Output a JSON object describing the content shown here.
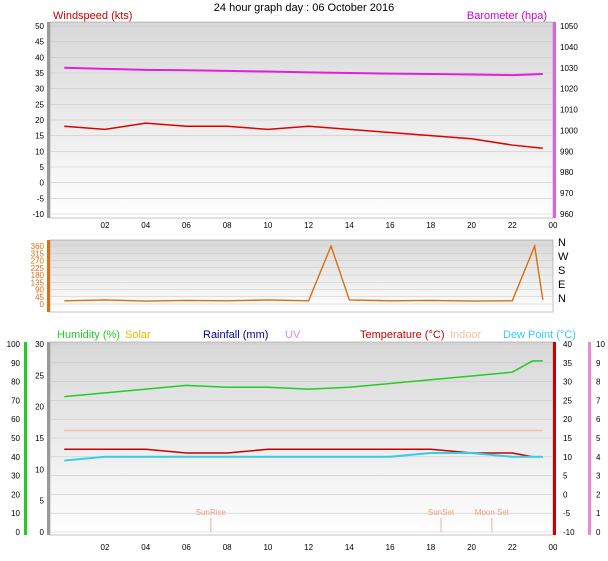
{
  "title": "24 hour graph day : 06 October 2016",
  "colors": {
    "wind": "#e00000",
    "gust_bg": "#b0b0b0",
    "avg": "#0000cc",
    "baro": "#e020e0",
    "dir": "#d87010",
    "humidity": "#22cc22",
    "solar": "#d8c000",
    "rain": "#000099",
    "uv": "#e88ad0",
    "temp": "#cc0000",
    "indoor": "#f5c0a0",
    "dew": "#33ccee"
  },
  "x_ticks": [
    "02",
    "04",
    "06",
    "08",
    "10",
    "12",
    "14",
    "16",
    "18",
    "20",
    "22",
    "00"
  ],
  "chart_data": [
    {
      "type": "line",
      "title": "",
      "left_axis": {
        "label": "Windspeed (kts)",
        "ticks": [
          "-10",
          "-5",
          "0",
          "5",
          "10",
          "15",
          "20",
          "25",
          "30",
          "35",
          "40",
          "45",
          "50"
        ],
        "ylim": [
          -10,
          50
        ]
      },
      "right_axis": {
        "label": "Barometer (hpa)",
        "ticks": [
          "960",
          "970",
          "980",
          "990",
          "1000",
          "1010",
          "1020",
          "1030",
          "1040",
          "1050"
        ],
        "ylim": [
          960,
          1050
        ]
      },
      "x": [
        0,
        2,
        4,
        6,
        8,
        10,
        12,
        14,
        16,
        18,
        20,
        22,
        23.5
      ],
      "series": [
        {
          "name": "Windspeed",
          "axis": "left",
          "values": [
            18,
            17,
            19,
            18,
            18,
            17,
            18,
            17,
            16,
            15,
            14,
            12,
            11
          ]
        },
        {
          "name": "Barometer",
          "axis": "right",
          "values": [
            1030,
            1029.5,
            1029,
            1028.8,
            1028.5,
            1028.2,
            1027.8,
            1027.5,
            1027.2,
            1027,
            1026.8,
            1026.5,
            1027
          ]
        }
      ]
    },
    {
      "type": "scatter",
      "title": "",
      "left_axis": {
        "ticks": [
          "0",
          "45",
          "90",
          "135",
          "180",
          "225",
          "270",
          "315",
          "360"
        ],
        "ylim": [
          0,
          360
        ]
      },
      "right_axis": {
        "ticks": [
          "N",
          "E",
          "S",
          "W",
          "N"
        ]
      },
      "x": [
        0,
        2,
        4,
        6,
        8,
        10,
        12,
        13.1,
        14,
        16,
        18,
        20,
        22,
        23.1,
        23.5
      ],
      "series": [
        {
          "name": "Direction",
          "values": [
            20,
            25,
            18,
            22,
            20,
            25,
            20,
            360,
            25,
            20,
            22,
            18,
            20,
            360,
            25
          ]
        }
      ]
    },
    {
      "type": "line",
      "title": "",
      "legend": [
        "Humidity (%)",
        "Solar",
        "Rainfall (mm)",
        "UV",
        "Temperature (°C)",
        "Indoor",
        "Dew Point (°C)"
      ],
      "left_axis": {
        "ticks": [
          "0",
          "10",
          "20",
          "30",
          "40",
          "50",
          "60",
          "70",
          "80",
          "90",
          "100"
        ],
        "ylim": [
          0,
          100
        ]
      },
      "mid_axis": {
        "ticks": [
          "0",
          "5",
          "10",
          "15",
          "20",
          "25",
          "30"
        ],
        "ylim": [
          0,
          30
        ]
      },
      "right_axis": {
        "ticks": [
          "-10",
          "-5",
          "0",
          "5",
          "10",
          "15",
          "20",
          "25",
          "30",
          "35",
          "40"
        ],
        "ylim": [
          -10,
          40
        ]
      },
      "right_axis2": {
        "ticks": [
          "0",
          "1",
          "2",
          "3",
          "4",
          "5",
          "6",
          "7",
          "8",
          "9",
          "10"
        ],
        "ylim": [
          0,
          10
        ]
      },
      "x": [
        0,
        2,
        4,
        6,
        8,
        10,
        12,
        14,
        16,
        18,
        20,
        22,
        23,
        23.5
      ],
      "series": [
        {
          "name": "Humidity",
          "values": [
            72,
            74,
            76,
            78,
            77,
            77,
            76,
            77,
            79,
            81,
            83,
            85,
            91,
            91
          ]
        },
        {
          "name": "Temperature",
          "values": [
            12,
            12,
            12,
            11,
            11,
            12,
            12,
            12,
            12,
            12,
            11,
            11,
            10,
            10
          ]
        },
        {
          "name": "Indoor",
          "values": [
            17,
            17,
            17,
            17,
            17,
            17,
            17,
            17,
            17,
            17,
            17,
            17,
            17,
            17
          ]
        },
        {
          "name": "Dew Point",
          "values": [
            9,
            10,
            10,
            10,
            10,
            10,
            10,
            10,
            10,
            11,
            11,
            10,
            10,
            10
          ]
        }
      ],
      "annotations": [
        "SunRise",
        "SunSet",
        "Moon Set"
      ]
    }
  ]
}
